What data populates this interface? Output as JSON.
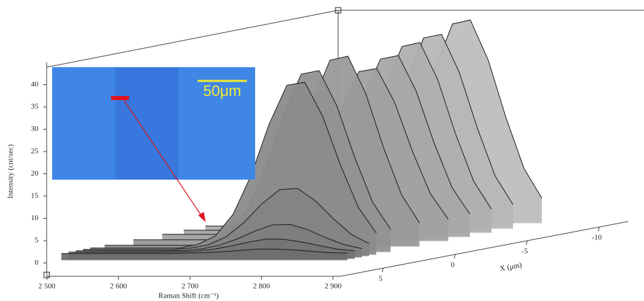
{
  "chart_data": {
    "type": "waterfall3d",
    "xlabel": "Raman Shift (cm⁻¹)",
    "ylabel": "Intensity (cnt/sec)",
    "zlabel": "X (μm)",
    "inset_label": "50μm",
    "x": [
      2500,
      2525,
      2550,
      2575,
      2600,
      2625,
      2650,
      2675,
      2700,
      2725,
      2750,
      2775,
      2800,
      2825,
      2850,
      2875,
      2900
    ],
    "xlim": [
      2490,
      2910
    ],
    "xticks": [
      {
        "value": 2500,
        "label": "2 500"
      },
      {
        "value": 2600,
        "label": "2 600"
      },
      {
        "value": 2700,
        "label": "2 700"
      },
      {
        "value": 2800,
        "label": "2 800"
      },
      {
        "value": 2900,
        "label": "2 900"
      }
    ],
    "ylim": [
      -3,
      45
    ],
    "yticks": [
      0,
      5,
      10,
      15,
      20,
      25,
      30,
      35,
      40
    ],
    "zlim": [
      8,
      -12
    ],
    "zticks": [
      5,
      0,
      -5,
      -10
    ],
    "fill": "#8c8c8c",
    "line_color": "#1a1a1a",
    "series": [
      {
        "position": 7,
        "values": [
          1.5,
          1.5,
          1.5,
          1.5,
          1.5,
          1.5,
          1.5,
          1.6,
          1.7,
          1.9,
          2.2,
          2.5,
          2.5,
          2.3,
          2.0,
          1.7,
          1.6
        ]
      },
      {
        "position": 6.5,
        "values": [
          1.5,
          1.5,
          1.5,
          1.5,
          1.5,
          1.5,
          1.6,
          1.7,
          2.1,
          2.8,
          3.7,
          4.4,
          4.4,
          3.8,
          3.0,
          2.2,
          1.8
        ]
      },
      {
        "position": 6,
        "values": [
          1.5,
          1.5,
          1.5,
          1.5,
          1.5,
          1.5,
          1.6,
          1.9,
          2.7,
          4.1,
          5.9,
          7.3,
          7.4,
          6.2,
          4.4,
          2.9,
          2.0
        ]
      },
      {
        "position": 5.5,
        "values": [
          1.5,
          1.5,
          1.5,
          1.5,
          1.5,
          1.5,
          1.8,
          2.5,
          4.3,
          7.5,
          11.7,
          14.9,
          15.2,
          12.4,
          8.4,
          4.9,
          2.8
        ]
      },
      {
        "position": 5,
        "values": [
          1.5,
          1.5,
          1.5,
          1.5,
          1.5,
          1.5,
          2.3,
          4.2,
          9.1,
          17.8,
          29.2,
          38.0,
          38.7,
          31.1,
          20.1,
          10.6,
          4.9
        ]
      },
      {
        "position": 4,
        "values": [
          1.5,
          1.5,
          1.5,
          1.5,
          1.5,
          1.5,
          2.3,
          4.3,
          9.5,
          18.7,
          30.7,
          39.9,
          40.7,
          32.7,
          21.1,
          11.1,
          5.1
        ]
      },
      {
        "position": 2,
        "values": [
          1.5,
          1.5,
          1.5,
          1.5,
          1.5,
          1.5,
          2.3,
          4.4,
          9.9,
          19.6,
          32.2,
          41.8,
          42.7,
          34.3,
          22.1,
          11.6,
          5.3
        ]
      },
      {
        "position": 0,
        "values": [
          1.5,
          1.5,
          1.5,
          1.5,
          1.5,
          1.5,
          2.3,
          4.2,
          9.1,
          17.8,
          29.2,
          38.0,
          38.7,
          31.1,
          20.1,
          10.6,
          4.9
        ]
      },
      {
        "position": -1.5,
        "values": [
          1.5,
          1.5,
          1.5,
          1.5,
          1.5,
          1.5,
          2.3,
          4.3,
          9.5,
          18.7,
          30.7,
          39.9,
          40.7,
          32.7,
          21.1,
          11.1,
          5.1
        ]
      },
      {
        "position": -3,
        "values": [
          1.5,
          1.5,
          1.5,
          1.5,
          1.5,
          1.5,
          2.3,
          4.4,
          9.9,
          19.6,
          32.2,
          41.8,
          42.7,
          34.3,
          22.1,
          11.6,
          5.3
        ]
      },
      {
        "position": -4.5,
        "values": [
          1.5,
          1.5,
          1.5,
          1.5,
          1.5,
          1.5,
          2.4,
          4.5,
          10.1,
          20.0,
          32.9,
          42.8,
          43.6,
          35.0,
          22.6,
          11.8,
          5.4
        ]
      },
      {
        "position": -6.5,
        "values": [
          1.5,
          1.5,
          1.5,
          1.5,
          1.5,
          1.5,
          2.4,
          4.7,
          10.5,
          20.9,
          34.4,
          44.7,
          45.6,
          36.6,
          23.6,
          12.3,
          5.6
        ]
      }
    ]
  }
}
